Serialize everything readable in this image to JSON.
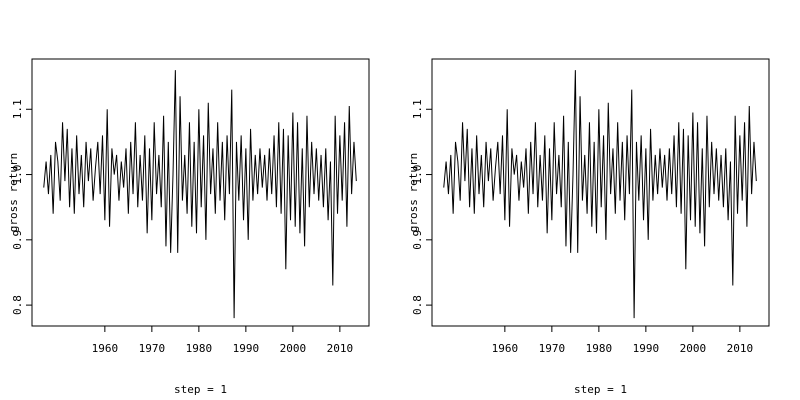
{
  "chart_data": [
    {
      "type": "line",
      "xlabel": "step = 1",
      "ylabel": "gross return",
      "color": "#000000",
      "xlim": [
        1944.5,
        2016.2
      ],
      "ylim": [
        0.768,
        1.177
      ],
      "xticks": [
        1960,
        1970,
        1980,
        1990,
        2000,
        2010
      ],
      "yticks": [
        0.8,
        0.9,
        {
          "value": 1,
          "label": "1.0"
        },
        1.1
      ],
      "x": [
        1947,
        1947.5,
        1948,
        1948.5,
        1949,
        1949.5,
        1950,
        1950.5,
        1951,
        1951.5,
        1952,
        1952.5,
        1953,
        1953.5,
        1954,
        1954.5,
        1955,
        1955.5,
        1956,
        1956.5,
        1957,
        1957.5,
        1958,
        1958.5,
        1959,
        1959.5,
        1960,
        1960.5,
        1961,
        1961.5,
        1962,
        1962.5,
        1963,
        1963.5,
        1964,
        1964.5,
        1965,
        1965.5,
        1966,
        1966.5,
        1967,
        1967.5,
        1968,
        1968.5,
        1969,
        1969.5,
        1970,
        1970.5,
        1971,
        1971.5,
        1972,
        1972.5,
        1973,
        1973.5,
        1974,
        1974.5,
        1975,
        1975.5,
        1976,
        1976.5,
        1977,
        1977.5,
        1978,
        1978.5,
        1979,
        1979.5,
        1980,
        1980.5,
        1981,
        1981.5,
        1982,
        1982.5,
        1983,
        1983.5,
        1984,
        1984.5,
        1985,
        1985.5,
        1986,
        1986.5,
        1987,
        1987.5,
        1988,
        1988.5,
        1989,
        1989.5,
        1990,
        1990.5,
        1991,
        1991.5,
        1992,
        1992.5,
        1993,
        1993.5,
        1994,
        1994.5,
        1995,
        1995.5,
        1996,
        1996.5,
        1997,
        1997.5,
        1998,
        1998.5,
        1999,
        1999.5,
        2000,
        2000.5,
        2001,
        2001.5,
        2002,
        2002.5,
        2003,
        2003.5,
        2004,
        2004.5,
        2005,
        2005.5,
        2006,
        2006.5,
        2007,
        2007.5,
        2008,
        2008.5,
        2009,
        2009.5,
        2010,
        2010.5,
        2011,
        2011.5,
        2012,
        2012.5,
        2013,
        2013.5
      ],
      "values": [
        0.98,
        1.02,
        0.97,
        1.03,
        0.94,
        1.05,
        1.02,
        0.96,
        1.08,
        0.99,
        1.07,
        0.95,
        1.04,
        0.94,
        1.06,
        0.97,
        1.03,
        0.95,
        1.05,
        0.99,
        1.04,
        0.96,
        1.01,
        1.05,
        0.97,
        1.06,
        0.93,
        1.1,
        0.92,
        1.04,
        1.0,
        1.03,
        0.96,
        1.02,
        0.98,
        1.04,
        0.94,
        1.05,
        0.97,
        1.08,
        0.95,
        1.03,
        0.96,
        1.06,
        0.91,
        1.04,
        0.93,
        1.08,
        0.97,
        1.03,
        0.95,
        1.09,
        0.89,
        1.05,
        0.88,
        1.0,
        1.16,
        0.88,
        1.12,
        0.96,
        1.03,
        0.94,
        1.08,
        0.92,
        1.05,
        0.91,
        1.1,
        0.95,
        1.06,
        0.9,
        1.11,
        0.97,
        1.04,
        0.94,
        1.08,
        0.96,
        1.05,
        0.93,
        1.06,
        0.97,
        1.13,
        0.78,
        1.05,
        0.96,
        1.06,
        0.93,
        1.04,
        0.9,
        1.07,
        0.96,
        1.03,
        0.97,
        1.04,
        0.98,
        1.03,
        0.96,
        1.04,
        0.97,
        1.06,
        0.95,
        1.08,
        0.94,
        1.07,
        0.855,
        1.06,
        0.93,
        1.095,
        0.92,
        1.08,
        0.91,
        1.04,
        0.89,
        1.09,
        0.95,
        1.05,
        0.97,
        1.04,
        0.96,
        1.03,
        0.95,
        1.04,
        0.93,
        1.02,
        0.83,
        1.09,
        0.94,
        1.06,
        0.96,
        1.08,
        0.92,
        1.105,
        0.97,
        1.05,
        0.99
      ]
    },
    {
      "type": "line",
      "xlabel": "step = 1",
      "ylabel": "gross return",
      "color": "#000000",
      "xlim": [
        1944.5,
        2016.2
      ],
      "ylim": [
        0.768,
        1.177
      ],
      "xticks": [
        1960,
        1970,
        1980,
        1990,
        2000,
        2010
      ],
      "yticks": [
        0.8,
        0.9,
        {
          "value": 1,
          "label": "1.0"
        },
        1.1
      ],
      "x": [
        1947,
        1947.5,
        1948,
        1948.5,
        1949,
        1949.5,
        1950,
        1950.5,
        1951,
        1951.5,
        1952,
        1952.5,
        1953,
        1953.5,
        1954,
        1954.5,
        1955,
        1955.5,
        1956,
        1956.5,
        1957,
        1957.5,
        1958,
        1958.5,
        1959,
        1959.5,
        1960,
        1960.5,
        1961,
        1961.5,
        1962,
        1962.5,
        1963,
        1963.5,
        1964,
        1964.5,
        1965,
        1965.5,
        1966,
        1966.5,
        1967,
        1967.5,
        1968,
        1968.5,
        1969,
        1969.5,
        1970,
        1970.5,
        1971,
        1971.5,
        1972,
        1972.5,
        1973,
        1973.5,
        1974,
        1974.5,
        1975,
        1975.5,
        1976,
        1976.5,
        1977,
        1977.5,
        1978,
        1978.5,
        1979,
        1979.5,
        1980,
        1980.5,
        1981,
        1981.5,
        1982,
        1982.5,
        1983,
        1983.5,
        1984,
        1984.5,
        1985,
        1985.5,
        1986,
        1986.5,
        1987,
        1987.5,
        1988,
        1988.5,
        1989,
        1989.5,
        1990,
        1990.5,
        1991,
        1991.5,
        1992,
        1992.5,
        1993,
        1993.5,
        1994,
        1994.5,
        1995,
        1995.5,
        1996,
        1996.5,
        1997,
        1997.5,
        1998,
        1998.5,
        1999,
        1999.5,
        2000,
        2000.5,
        2001,
        2001.5,
        2002,
        2002.5,
        2003,
        2003.5,
        2004,
        2004.5,
        2005,
        2005.5,
        2006,
        2006.5,
        2007,
        2007.5,
        2008,
        2008.5,
        2009,
        2009.5,
        2010,
        2010.5,
        2011,
        2011.5,
        2012,
        2012.5,
        2013,
        2013.5
      ],
      "values": [
        0.98,
        1.02,
        0.97,
        1.03,
        0.94,
        1.05,
        1.02,
        0.96,
        1.08,
        0.99,
        1.07,
        0.95,
        1.04,
        0.94,
        1.06,
        0.97,
        1.03,
        0.95,
        1.05,
        0.99,
        1.04,
        0.96,
        1.01,
        1.05,
        0.97,
        1.06,
        0.93,
        1.1,
        0.92,
        1.04,
        1.0,
        1.03,
        0.96,
        1.02,
        0.98,
        1.04,
        0.94,
        1.05,
        0.97,
        1.08,
        0.95,
        1.03,
        0.96,
        1.06,
        0.91,
        1.04,
        0.93,
        1.08,
        0.97,
        1.03,
        0.95,
        1.09,
        0.89,
        1.05,
        0.88,
        1.0,
        1.16,
        0.88,
        1.12,
        0.96,
        1.03,
        0.94,
        1.08,
        0.92,
        1.05,
        0.91,
        1.1,
        0.95,
        1.06,
        0.9,
        1.11,
        0.97,
        1.04,
        0.94,
        1.08,
        0.96,
        1.05,
        0.93,
        1.06,
        0.97,
        1.13,
        0.78,
        1.05,
        0.96,
        1.06,
        0.93,
        1.04,
        0.9,
        1.07,
        0.96,
        1.03,
        0.97,
        1.04,
        0.98,
        1.03,
        0.96,
        1.04,
        0.97,
        1.06,
        0.95,
        1.08,
        0.94,
        1.07,
        0.855,
        1.06,
        0.93,
        1.095,
        0.92,
        1.08,
        0.91,
        1.04,
        0.89,
        1.09,
        0.95,
        1.05,
        0.97,
        1.04,
        0.96,
        1.03,
        0.95,
        1.04,
        0.93,
        1.02,
        0.83,
        1.09,
        0.94,
        1.06,
        0.96,
        1.08,
        0.92,
        1.105,
        0.97,
        1.05,
        0.99
      ]
    }
  ]
}
